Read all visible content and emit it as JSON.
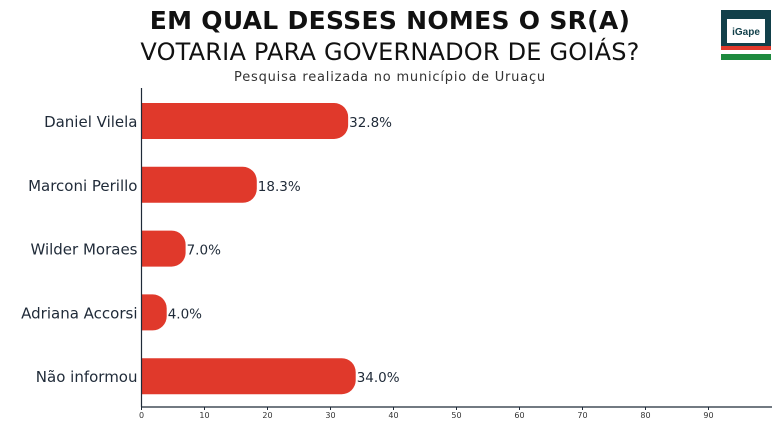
{
  "header": {
    "title_line1": "EM QUAL DESSES NOMES O SR(A)",
    "title_line2": "VOTARIA PARA GOVERNADOR DE GOIÁS?",
    "subtitle": "Pesquisa realizada no município de Uruaçu"
  },
  "logo": {
    "text": "iGape",
    "icon": "igape-logo"
  },
  "colors": {
    "bar": "#e0392b",
    "axis": "#1f2a38",
    "label": "#1f2a38"
  },
  "chart_data": {
    "type": "bar",
    "orientation": "horizontal",
    "categories": [
      "Daniel Vilela",
      "Marconi Perillo",
      "Wilder Moraes",
      "Adriana Accorsi",
      "Não informou"
    ],
    "values": [
      32.8,
      18.3,
      7.0,
      4.0,
      34.0
    ],
    "value_labels": [
      "32.8%",
      "18.3%",
      "7.0%",
      "4.0%",
      "34.0%"
    ],
    "title": "EM QUAL DESSES NOMES O SR(A) VOTARIA PARA GOVERNADOR DE GOIÁS?",
    "xlim": [
      0,
      100
    ],
    "xticks": [
      0,
      10,
      20,
      30,
      40,
      50,
      60,
      70,
      80,
      90
    ],
    "xtick_labels": [
      "0",
      "10",
      "20",
      "30",
      "40",
      "50",
      "60",
      "70",
      "80",
      "90"
    ],
    "grid": false,
    "legend": "none"
  }
}
